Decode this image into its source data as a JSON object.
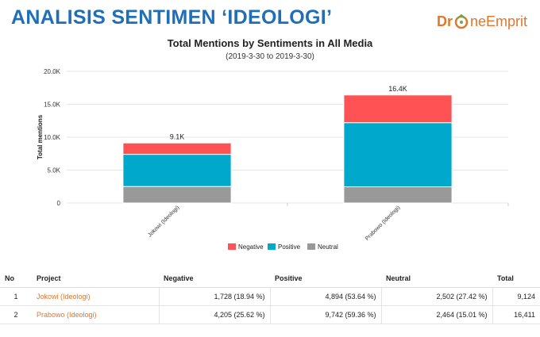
{
  "header": {
    "title": "ANALISIS SENTIMEN ‘IDEOLOGI’",
    "logo_part1": "Dr",
    "logo_part2": "neEmprit"
  },
  "chart_data": {
    "type": "bar",
    "stacked": true,
    "title": "Total Mentions by Sentiments in All Media",
    "subtitle": "(2019-3-30 to 2019-3-30)",
    "ylabel": "Total mentions",
    "ylim": [
      0,
      20000
    ],
    "y_ticks": [
      "0",
      "5.0K",
      "10.0K",
      "15.0K",
      "20.0K"
    ],
    "y_tick_values": [
      0,
      5000,
      10000,
      15000,
      20000
    ],
    "categories": [
      "Jokowi (Ideologi)",
      "Prabowo (Ideologi)"
    ],
    "totals_labels": [
      "9.1K",
      "16.4K"
    ],
    "grid": true,
    "legend_position": "bottom",
    "series": [
      {
        "name": "Neutral",
        "color": "#999999",
        "values": [
          2502,
          2464
        ]
      },
      {
        "name": "Positive",
        "color": "#00a9cc",
        "values": [
          4894,
          9742
        ]
      },
      {
        "name": "Negative",
        "color": "#ff5254",
        "values": [
          1728,
          4205
        ]
      }
    ],
    "legend": [
      "Negative",
      "Positive",
      "Neutral"
    ]
  },
  "table": {
    "columns": [
      "No",
      "Project",
      "Negative",
      "Positive",
      "Neutral",
      "Total"
    ],
    "rows": [
      [
        "1",
        "Jokowi (Ideologi)",
        "1,728 (18.94 %)",
        "4,894 (53.64 %)",
        "2,502 (27.42 %)",
        "9,124"
      ],
      [
        "2",
        "Prabowo (Ideologi)",
        "4,205 (25.62 %)",
        "9,742 (59.36 %)",
        "2,464 (15.01 %)",
        "16,411"
      ]
    ]
  }
}
